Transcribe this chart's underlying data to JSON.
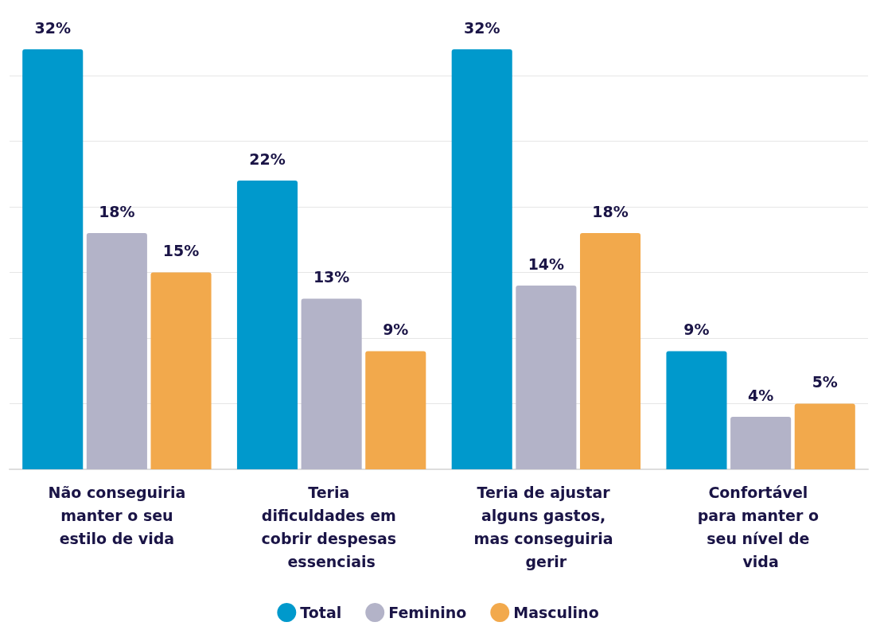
{
  "chart_data": {
    "type": "bar",
    "categories": [
      "Não conseguiria manter o seu estilo de vida",
      "Teria dificuldades em cobrir despesas essenciais",
      "Teria de ajustar alguns gastos, mas conseguiria gerir",
      "Confortável para manter o seu nível de vida"
    ],
    "series": [
      {
        "name": "Total",
        "color": "#0099cc",
        "values": [
          32,
          22,
          32,
          9
        ],
        "value_labels": [
          "32%",
          "22%",
          "32%",
          "9%"
        ]
      },
      {
        "name": "Feminino",
        "color": "#b3b3c8",
        "values": [
          18,
          13,
          14,
          4
        ],
        "value_labels": [
          "18%",
          "13%",
          "14%",
          "4%"
        ]
      },
      {
        "name": "Masculino",
        "color": "#f2a94c",
        "values": [
          15,
          9,
          18,
          5
        ],
        "value_labels": [
          "15%",
          "9%",
          "18%",
          "5%"
        ]
      }
    ],
    "ylim": [
      0,
      32
    ],
    "yticks": [
      {
        "value": 0,
        "label": null
      },
      {
        "value": 5,
        "label": null
      },
      {
        "value": 10,
        "label": null
      },
      {
        "value": 15,
        "label": null
      },
      {
        "value": 20,
        "label": null
      },
      {
        "value": 25,
        "label": null
      },
      {
        "value": 30,
        "label": null
      }
    ],
    "tick_labels": "x",
    "grid": "y",
    "legend": "bottom"
  }
}
